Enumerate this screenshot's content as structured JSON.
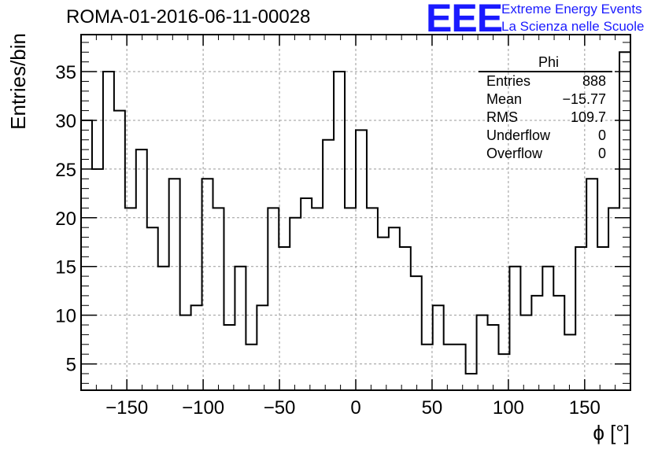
{
  "header": {
    "title": "ROMA-01-2016-06-11-00028",
    "logo_text": "EEE",
    "logo_line1": "Extreme Energy Events",
    "logo_line2": "La Scienza nelle Scuole"
  },
  "stats": {
    "title": "Phi",
    "rows": [
      {
        "label": "Entries",
        "value": "888"
      },
      {
        "label": "Mean",
        "value": "−15.77"
      },
      {
        "label": "RMS",
        "value": "109.7"
      },
      {
        "label": "Underflow",
        "value": "0"
      },
      {
        "label": "Overflow",
        "value": "0"
      }
    ]
  },
  "colors": {
    "line": "#000000",
    "grid": "#999999",
    "logo": "#1a1aff"
  },
  "chart_data": {
    "type": "histogram",
    "xlabel": "ϕ [°]",
    "ylabel": "Entries/bin",
    "xlim": [
      -180,
      180
    ],
    "ylim": [
      2.3,
      38.8
    ],
    "bin_width": 7.2,
    "grid": true,
    "x_ticks": [
      -150,
      -100,
      -50,
      0,
      50,
      100,
      150
    ],
    "x_tick_labels": [
      "−150",
      "−100",
      "−50",
      "0",
      "50",
      "100",
      "150"
    ],
    "y_ticks": [
      5,
      10,
      15,
      20,
      25,
      30,
      35
    ],
    "y_tick_labels": [
      "5",
      "10",
      "15",
      "20",
      "25",
      "30",
      "35"
    ],
    "values": [
      30,
      25,
      35,
      31,
      21,
      27,
      19,
      15,
      24,
      10,
      11,
      24,
      21,
      9,
      15,
      7,
      11,
      21,
      17,
      20,
      22,
      21,
      28,
      35,
      21,
      29,
      21,
      18,
      19,
      17,
      14,
      7,
      11,
      7,
      7,
      4,
      10,
      9,
      6,
      15,
      10,
      12,
      15,
      12,
      8,
      17,
      24,
      17,
      21,
      37
    ]
  }
}
